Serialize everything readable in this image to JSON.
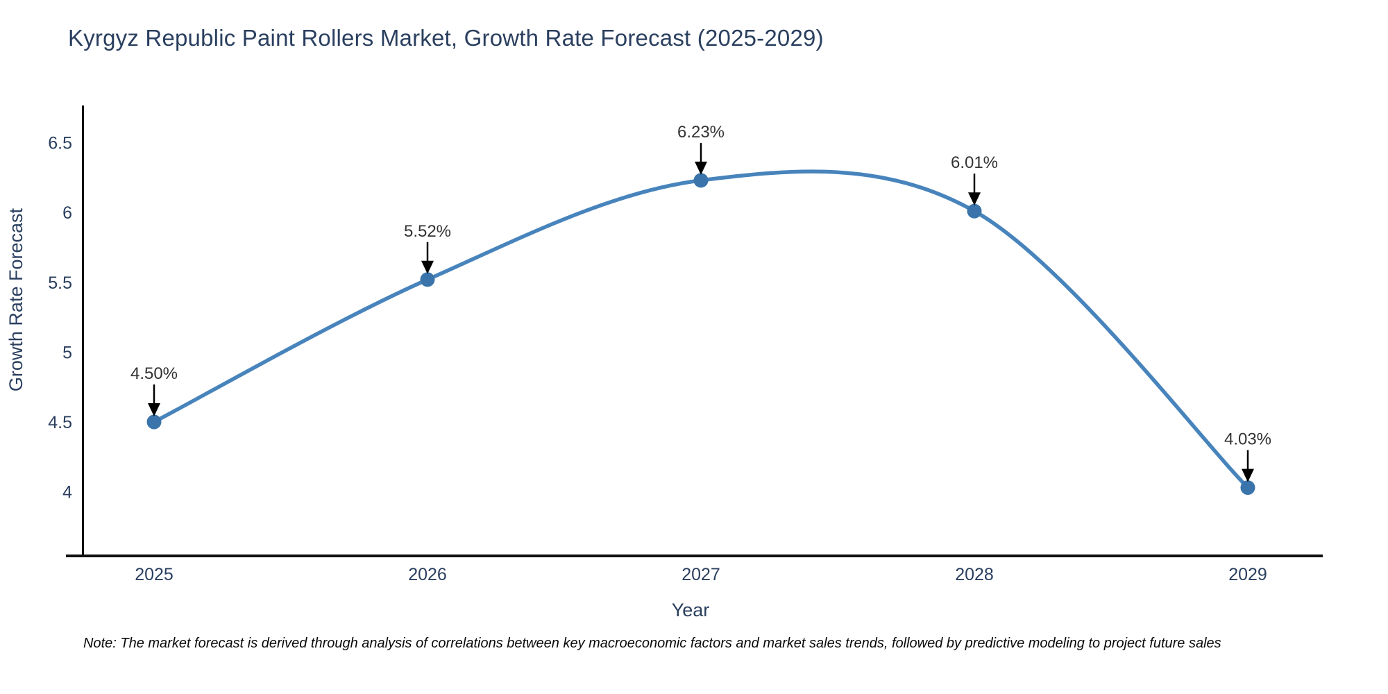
{
  "note": "Note: The market forecast is derived through analysis of correlations between key macroeconomic factors and market sales trends, followed by predictive modeling to project future sales",
  "chart_data": {
    "type": "line",
    "title": "Kyrgyz Republic Paint Rollers Market, Growth Rate Forecast (2025-2029)",
    "xlabel": "Year",
    "ylabel": "Growth Rate Forecast",
    "categories": [
      "2025",
      "2026",
      "2027",
      "2028",
      "2029"
    ],
    "series": [
      {
        "name": "Growth Rate Forecast",
        "values": [
          4.5,
          5.52,
          6.23,
          6.01,
          4.03
        ]
      }
    ],
    "point_labels": [
      "4.50%",
      "5.52%",
      "6.23%",
      "6.01%",
      "4.03%"
    ],
    "ytick_labels": [
      "4",
      "4.5",
      "5",
      "5.5",
      "6",
      "6.5"
    ],
    "ytick_values": [
      4,
      4.5,
      5,
      5.5,
      6,
      6.5
    ],
    "ylim": [
      3.55,
      6.75
    ],
    "grid": false,
    "legend": "none",
    "line_smoothing": "spline",
    "annotation_style": "value label with down arrow to point",
    "colors": {
      "line": "#4884bc",
      "marker": "#3a74aa",
      "arrow": "#000000",
      "axis": "#111111",
      "axis_text": "#2a3f5f",
      "annotation_text": "#333333",
      "background": "#ffffff"
    }
  }
}
